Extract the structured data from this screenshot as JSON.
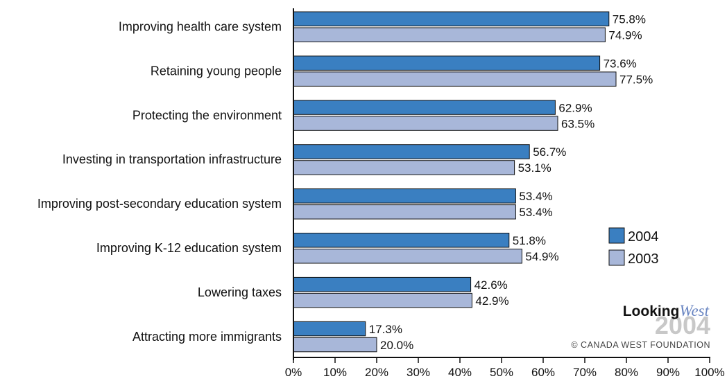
{
  "chart_data": {
    "type": "bar",
    "orientation": "horizontal",
    "categories": [
      "Improving health care system",
      "Retaining young people",
      "Protecting the environment",
      "Investing in transportation infrastructure",
      "Improving post-secondary education system",
      "Improving K-12 education system",
      "Lowering taxes",
      "Attracting more immigrants"
    ],
    "series": [
      {
        "name": "2004",
        "color": "#3a7fc1",
        "values": [
          75.8,
          73.6,
          62.9,
          56.7,
          53.4,
          51.8,
          42.6,
          17.3
        ],
        "value_labels": [
          "75.8%",
          "73.6%",
          "62.9%",
          "56.7%",
          "53.4%",
          "51.8%",
          "42.6%",
          "17.3%"
        ]
      },
      {
        "name": "2003",
        "color": "#a8b7d9",
        "values": [
          74.9,
          77.5,
          63.5,
          53.1,
          53.4,
          54.9,
          42.9,
          20.0
        ],
        "value_labels": [
          "74.9%",
          "77.5%",
          "63.5%",
          "53.1%",
          "53.4%",
          "54.9%",
          "42.9%",
          "20.0%"
        ]
      }
    ],
    "xlim": [
      0,
      100
    ],
    "x_ticks": [
      0,
      10,
      20,
      30,
      40,
      50,
      60,
      70,
      80,
      90,
      100
    ],
    "x_tick_labels": [
      "0%",
      "10%",
      "20%",
      "30%",
      "40%",
      "50%",
      "60%",
      "70%",
      "80%",
      "90%",
      "100%"
    ],
    "title": "",
    "xlabel": "",
    "ylabel": "",
    "grid": false,
    "legend": {
      "placement": "right",
      "entries": [
        "2004",
        "2003"
      ]
    }
  },
  "branding": {
    "logo_part1": "Looking",
    "logo_part2": "West",
    "logo_year": "2004",
    "copyright": "© CANADA WEST FOUNDATION"
  }
}
